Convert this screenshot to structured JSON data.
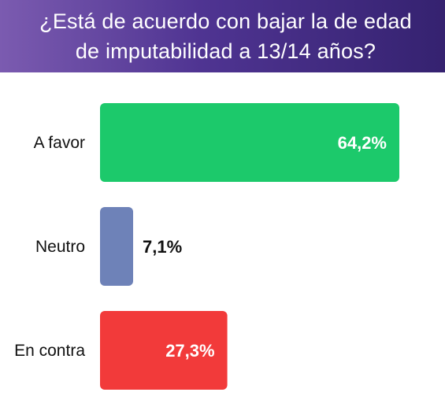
{
  "title_lines": [
    "¿Está de acuerdo con bajar la de edad",
    "de imputabilidad a 13/14 años?"
  ],
  "chart_data": {
    "type": "bar",
    "orientation": "horizontal",
    "title": "¿Está de acuerdo con bajar la de edad de imputabilidad a 13/14 años?",
    "categories": [
      "A favor",
      "Neutro",
      "En contra"
    ],
    "values": [
      64.2,
      7.1,
      27.3
    ],
    "value_labels": [
      "64,2%",
      "7,1%",
      "27,3%"
    ],
    "colors": [
      "#1cc96b",
      "#6e82b8",
      "#f23a3a"
    ],
    "xlim": [
      0,
      64.2
    ],
    "grid": false,
    "legend": "none"
  }
}
